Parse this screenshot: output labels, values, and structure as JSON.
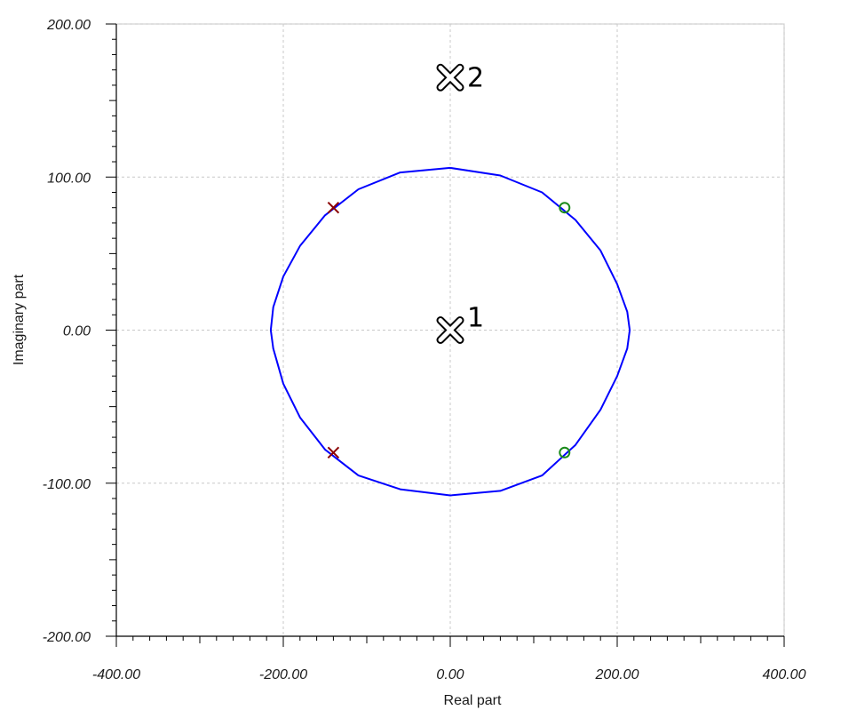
{
  "chart_data": {
    "type": "scatter",
    "xlabel": "Real part",
    "ylabel": "Imaginary part",
    "xlim": [
      -400,
      400
    ],
    "ylim": [
      -200,
      200
    ],
    "x_ticks": [
      "-400.00",
      "-200.00",
      "0.00",
      "200.00",
      "400.00"
    ],
    "y_ticks": [
      "200.00",
      "100.00",
      "0.00",
      "-100.00",
      "-200.00"
    ],
    "x_tick_values": [
      -400,
      -200,
      0,
      200,
      400
    ],
    "y_tick_values": [
      200,
      100,
      0,
      -100,
      -200
    ],
    "grid": true,
    "series": [
      {
        "kind": "curve",
        "color": "#0000ff",
        "points": [
          [
            0,
            106
          ],
          [
            60,
            101
          ],
          [
            110,
            90
          ],
          [
            150,
            72
          ],
          [
            180,
            52
          ],
          [
            200,
            30
          ],
          [
            212,
            12
          ],
          [
            215,
            0
          ],
          [
            212,
            -12
          ],
          [
            200,
            -30
          ],
          [
            180,
            -52
          ],
          [
            150,
            -75
          ],
          [
            110,
            -95
          ],
          [
            60,
            -105
          ],
          [
            0,
            -108
          ],
          [
            -60,
            -104
          ],
          [
            -110,
            -95
          ],
          [
            -150,
            -78
          ],
          [
            -180,
            -57
          ],
          [
            -200,
            -35
          ],
          [
            -212,
            -12
          ],
          [
            -215,
            0
          ],
          [
            -212,
            15
          ],
          [
            -200,
            35
          ],
          [
            -180,
            55
          ],
          [
            -150,
            75
          ],
          [
            -110,
            92
          ],
          [
            -60,
            103
          ],
          [
            0,
            106
          ]
        ]
      },
      {
        "kind": "x-marker",
        "color": "#8b0000",
        "points": [
          [
            -140,
            80
          ],
          [
            -140,
            -80
          ]
        ]
      },
      {
        "kind": "o-marker",
        "color": "#1a8a1a",
        "points": [
          [
            137,
            80
          ],
          [
            137,
            -80
          ]
        ]
      }
    ],
    "annotations": [
      {
        "label": "1",
        "x": 0,
        "y": 0
      },
      {
        "label": "2",
        "x": 0,
        "y": 165
      }
    ]
  }
}
